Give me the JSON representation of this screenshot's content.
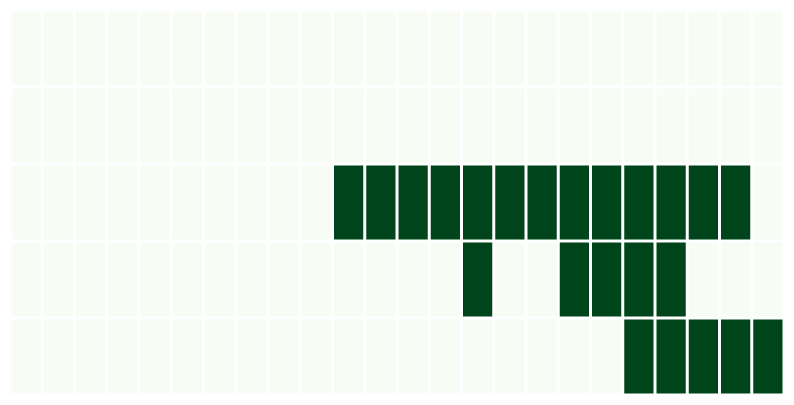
{
  "chart_data": {
    "type": "heatmap",
    "title": "",
    "xlabel": "",
    "ylabel": "",
    "rows": 5,
    "columns": 24,
    "values": [
      [
        0,
        0,
        0,
        0,
        0,
        0,
        0,
        0,
        0,
        0,
        0,
        0,
        0,
        0,
        0,
        0,
        0,
        0,
        0,
        0,
        0,
        0,
        0,
        0
      ],
      [
        0,
        0,
        0,
        0,
        0,
        0,
        0,
        0,
        0,
        0,
        0,
        0,
        0,
        0,
        0,
        0,
        0,
        0,
        0,
        0,
        0,
        0,
        0,
        0
      ],
      [
        0,
        0,
        0,
        0,
        0,
        0,
        0,
        0,
        0,
        0,
        1,
        1,
        1,
        1,
        1,
        1,
        1,
        1,
        1,
        1,
        1,
        1,
        1,
        0
      ],
      [
        0,
        0,
        0,
        0,
        0,
        0,
        0,
        0,
        0,
        0,
        0,
        0,
        0,
        0,
        1,
        0,
        0,
        1,
        1,
        1,
        1,
        0,
        0,
        0
      ],
      [
        0,
        0,
        0,
        0,
        0,
        0,
        0,
        0,
        0,
        0,
        0,
        0,
        0,
        0,
        0,
        0,
        0,
        0,
        0,
        1,
        1,
        1,
        1,
        1
      ]
    ],
    "colors": {
      "low": "#f7fcf5",
      "high": "#00441b",
      "grid": "#ffffff"
    },
    "grid": true,
    "legend": "none"
  }
}
